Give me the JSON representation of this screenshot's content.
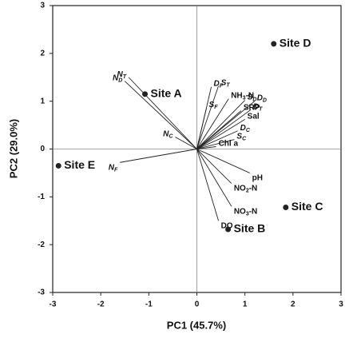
{
  "chart_data": {
    "type": "biplot",
    "x_label": "PC1 (45.7%)",
    "y_label": "PC2 (29.0%)",
    "xlim": [
      -3,
      3
    ],
    "ylim": [
      -3,
      3
    ],
    "xticks": [
      -3,
      -2,
      -1,
      0,
      1,
      2,
      3
    ],
    "yticks": [
      -3,
      -2,
      -1,
      0,
      1,
      2,
      3
    ],
    "zero_lines": true,
    "color": "#222",
    "points": [
      {
        "name": "Site A",
        "x": -1.08,
        "y": 1.15
      },
      {
        "name": "Site B",
        "x": 0.65,
        "y": -1.68
      },
      {
        "name": "Site C",
        "x": 1.85,
        "y": -1.22
      },
      {
        "name": "Site D",
        "x": 1.6,
        "y": 2.2
      },
      {
        "name": "Site E",
        "x": -2.88,
        "y": -0.35
      }
    ],
    "loadings": [
      {
        "label": "N",
        "sub": "D",
        "italic": true,
        "x": -1.5,
        "y": 1.42
      },
      {
        "label": "N",
        "sub": "T",
        "italic": true,
        "x": -1.42,
        "y": 1.5
      },
      {
        "label": "N",
        "sub": "C",
        "italic": true,
        "x": -0.45,
        "y": 0.25
      },
      {
        "label": "N",
        "sub": "F",
        "italic": true,
        "x": -1.6,
        "y": -0.28
      },
      {
        "label": "D",
        "sub": "F",
        "italic": true,
        "x": 0.3,
        "y": 1.3
      },
      {
        "label": "S",
        "sub": "T",
        "italic": true,
        "x": 0.45,
        "y": 1.32
      },
      {
        "label": "S",
        "sub": "F",
        "italic": true,
        "x": 0.2,
        "y": 0.86
      },
      {
        "label": "NH",
        "sub": "3",
        "suffix": "-N",
        "italic": false,
        "x": 0.66,
        "y": 1.05
      },
      {
        "label": "S",
        "sub": "D",
        "italic": true,
        "x": 1.0,
        "y": 1.02
      },
      {
        "label": "D",
        "sub": "D",
        "italic": true,
        "x": 1.2,
        "y": 1.0
      },
      {
        "label": "SRP",
        "italic": false,
        "x": 0.92,
        "y": 0.8
      },
      {
        "label": "D",
        "sub": "T",
        "italic": true,
        "x": 1.12,
        "y": 0.82
      },
      {
        "label": "Sal",
        "italic": false,
        "x": 1.0,
        "y": 0.62
      },
      {
        "label": "D",
        "sub": "C",
        "italic": true,
        "x": 0.85,
        "y": 0.38
      },
      {
        "label": "S",
        "sub": "C",
        "italic": true,
        "x": 0.78,
        "y": 0.2
      },
      {
        "label": "Chl a",
        "italic": false,
        "x": 0.4,
        "y": 0.05
      },
      {
        "label": "pH",
        "italic": false,
        "x": 1.1,
        "y": -0.5
      },
      {
        "label": "NO",
        "sub": "2",
        "suffix": "-N",
        "italic": false,
        "x": 0.72,
        "y": -0.72
      },
      {
        "label": "NO",
        "sub": "3",
        "suffix": "-N",
        "italic": false,
        "x": 0.72,
        "y": -1.2
      },
      {
        "label": "DO",
        "italic": false,
        "x": 0.45,
        "y": -1.5
      }
    ]
  }
}
